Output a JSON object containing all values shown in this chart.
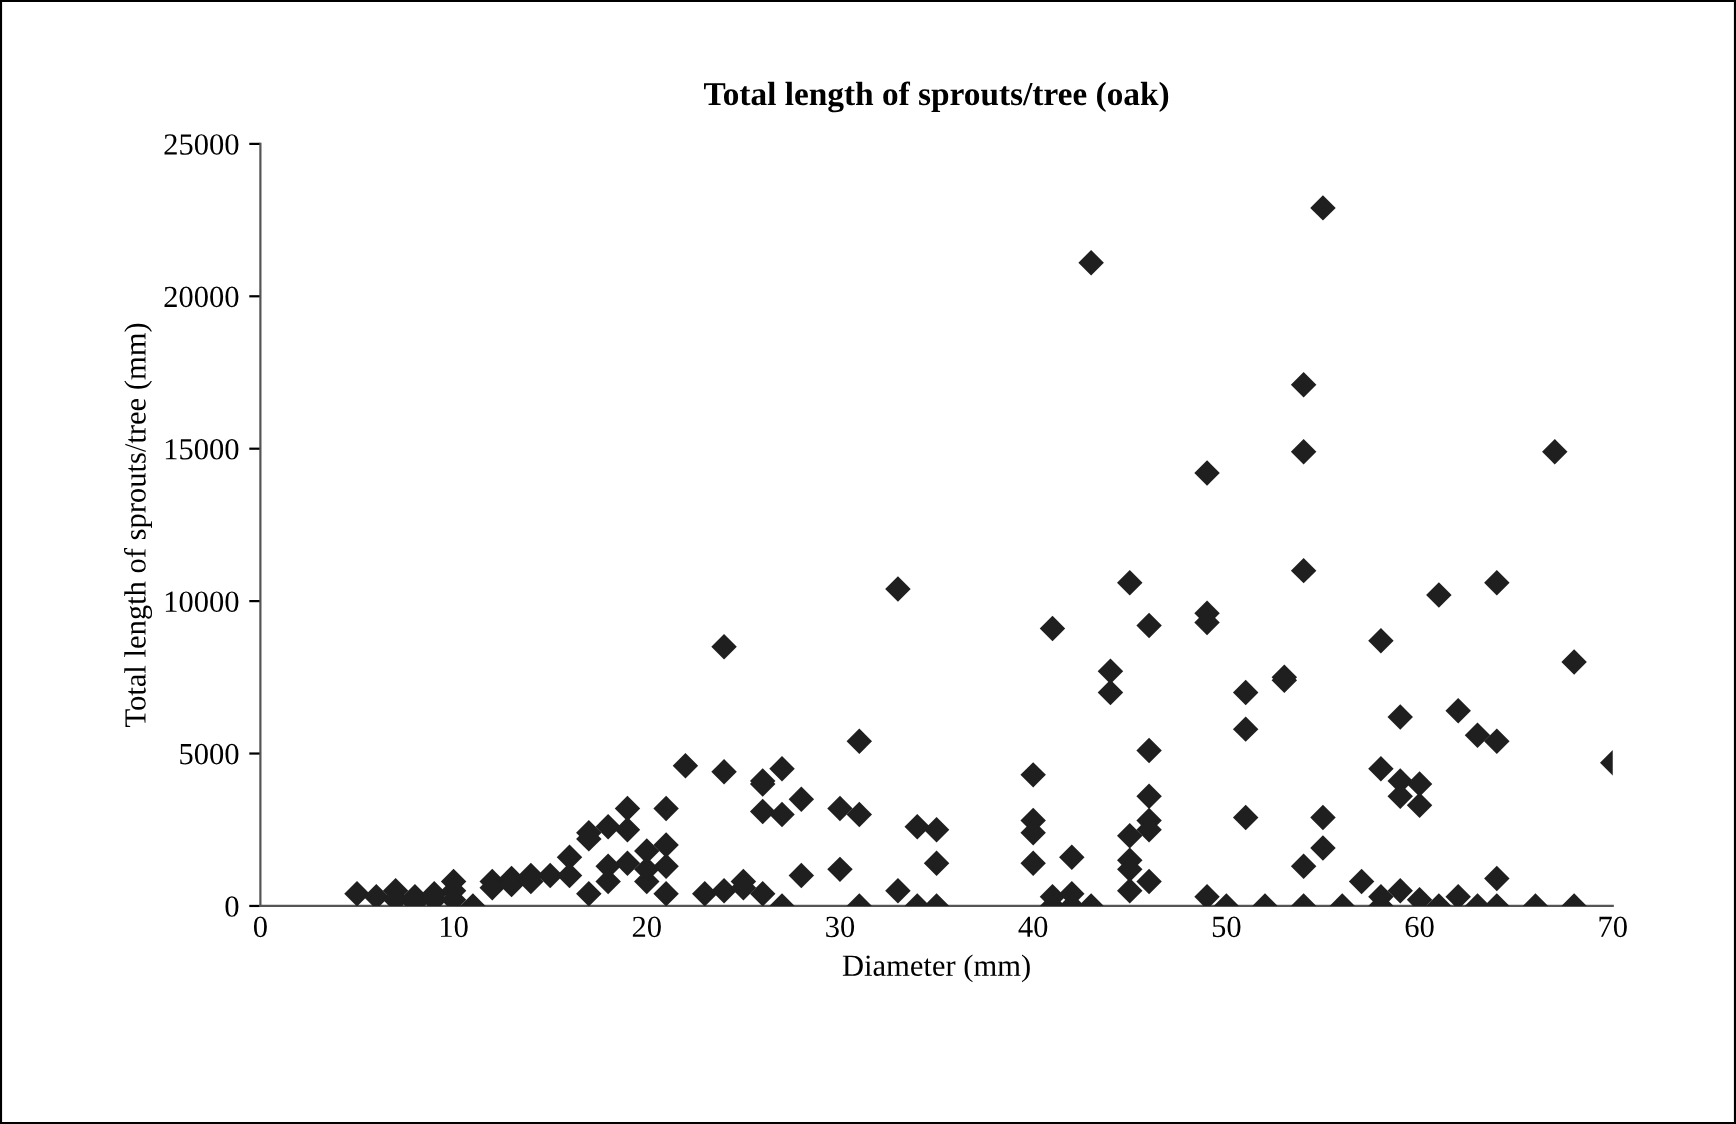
{
  "chart_data": {
    "type": "scatter",
    "title": "Total length of sprouts/tree (oak)",
    "xlabel": "Diameter (mm)",
    "ylabel": "Total length of sprouts/tree (mm)",
    "xlim": [
      0,
      70
    ],
    "ylim": [
      0,
      25000
    ],
    "xticks": [
      0,
      10,
      20,
      30,
      40,
      50,
      60,
      70
    ],
    "yticks": [
      0,
      5000,
      10000,
      15000,
      20000,
      25000
    ],
    "grid": false,
    "marker": "diamond",
    "legend": false,
    "series": [
      {
        "color": "#1f1f1f",
        "x": [
          5,
          6,
          7,
          7,
          8,
          8,
          9,
          9,
          10,
          10,
          10,
          11,
          12,
          12,
          13,
          13,
          14,
          14,
          15,
          16,
          16,
          17,
          17,
          17,
          18,
          18,
          18,
          19,
          19,
          19,
          20,
          20,
          20,
          21,
          21,
          21,
          21,
          22,
          23,
          24,
          24,
          24,
          25,
          25,
          26,
          26,
          26,
          26,
          27,
          27,
          27,
          28,
          28,
          30,
          30,
          31,
          31,
          31,
          33,
          33,
          34,
          34,
          35,
          35,
          35,
          40,
          40,
          40,
          40,
          41,
          41,
          41,
          42,
          42,
          42,
          43,
          43,
          44,
          44,
          45,
          45,
          45,
          45,
          45,
          46,
          46,
          46,
          46,
          46,
          46,
          49,
          49,
          49,
          49,
          50,
          51,
          51,
          51,
          52,
          53,
          53,
          54,
          54,
          54,
          54,
          54,
          55,
          55,
          55,
          56,
          57,
          58,
          58,
          58,
          58,
          59,
          59,
          59,
          59,
          60,
          60,
          60,
          61,
          61,
          62,
          62,
          63,
          63,
          64,
          64,
          64,
          64,
          66,
          67,
          68,
          68,
          70
        ],
        "values": [
          400,
          300,
          500,
          200,
          300,
          100,
          400,
          200,
          800,
          500,
          200,
          0,
          800,
          600,
          900,
          700,
          1000,
          800,
          1000,
          1600,
          1000,
          400,
          2400,
          2200,
          2600,
          1300,
          800,
          3200,
          2500,
          1400,
          1800,
          1200,
          800,
          3200,
          2000,
          1300,
          400,
          4600,
          400,
          8500,
          4400,
          500,
          800,
          600,
          4100,
          4000,
          3100,
          400,
          4500,
          3000,
          0,
          3500,
          1000,
          3200,
          1200,
          5400,
          3000,
          0,
          10400,
          500,
          2600,
          0,
          2500,
          1400,
          0,
          4300,
          2800,
          2400,
          1400,
          9100,
          300,
          0,
          1600,
          400,
          0,
          21100,
          0,
          7700,
          7000,
          10600,
          2300,
          1500,
          1200,
          500,
          9200,
          5100,
          3600,
          2800,
          2500,
          800,
          14200,
          9600,
          9300,
          300,
          0,
          7000,
          5800,
          2900,
          0,
          7500,
          7400,
          17100,
          14900,
          11000,
          1300,
          0,
          22900,
          2900,
          1900,
          0,
          800,
          8700,
          4500,
          300,
          0,
          6200,
          4100,
          3600,
          500,
          4000,
          3300,
          200,
          10200,
          0,
          6400,
          300,
          5600,
          0,
          10600,
          5400,
          900,
          0,
          0,
          14900,
          8000,
          0,
          4700
        ]
      }
    ]
  }
}
